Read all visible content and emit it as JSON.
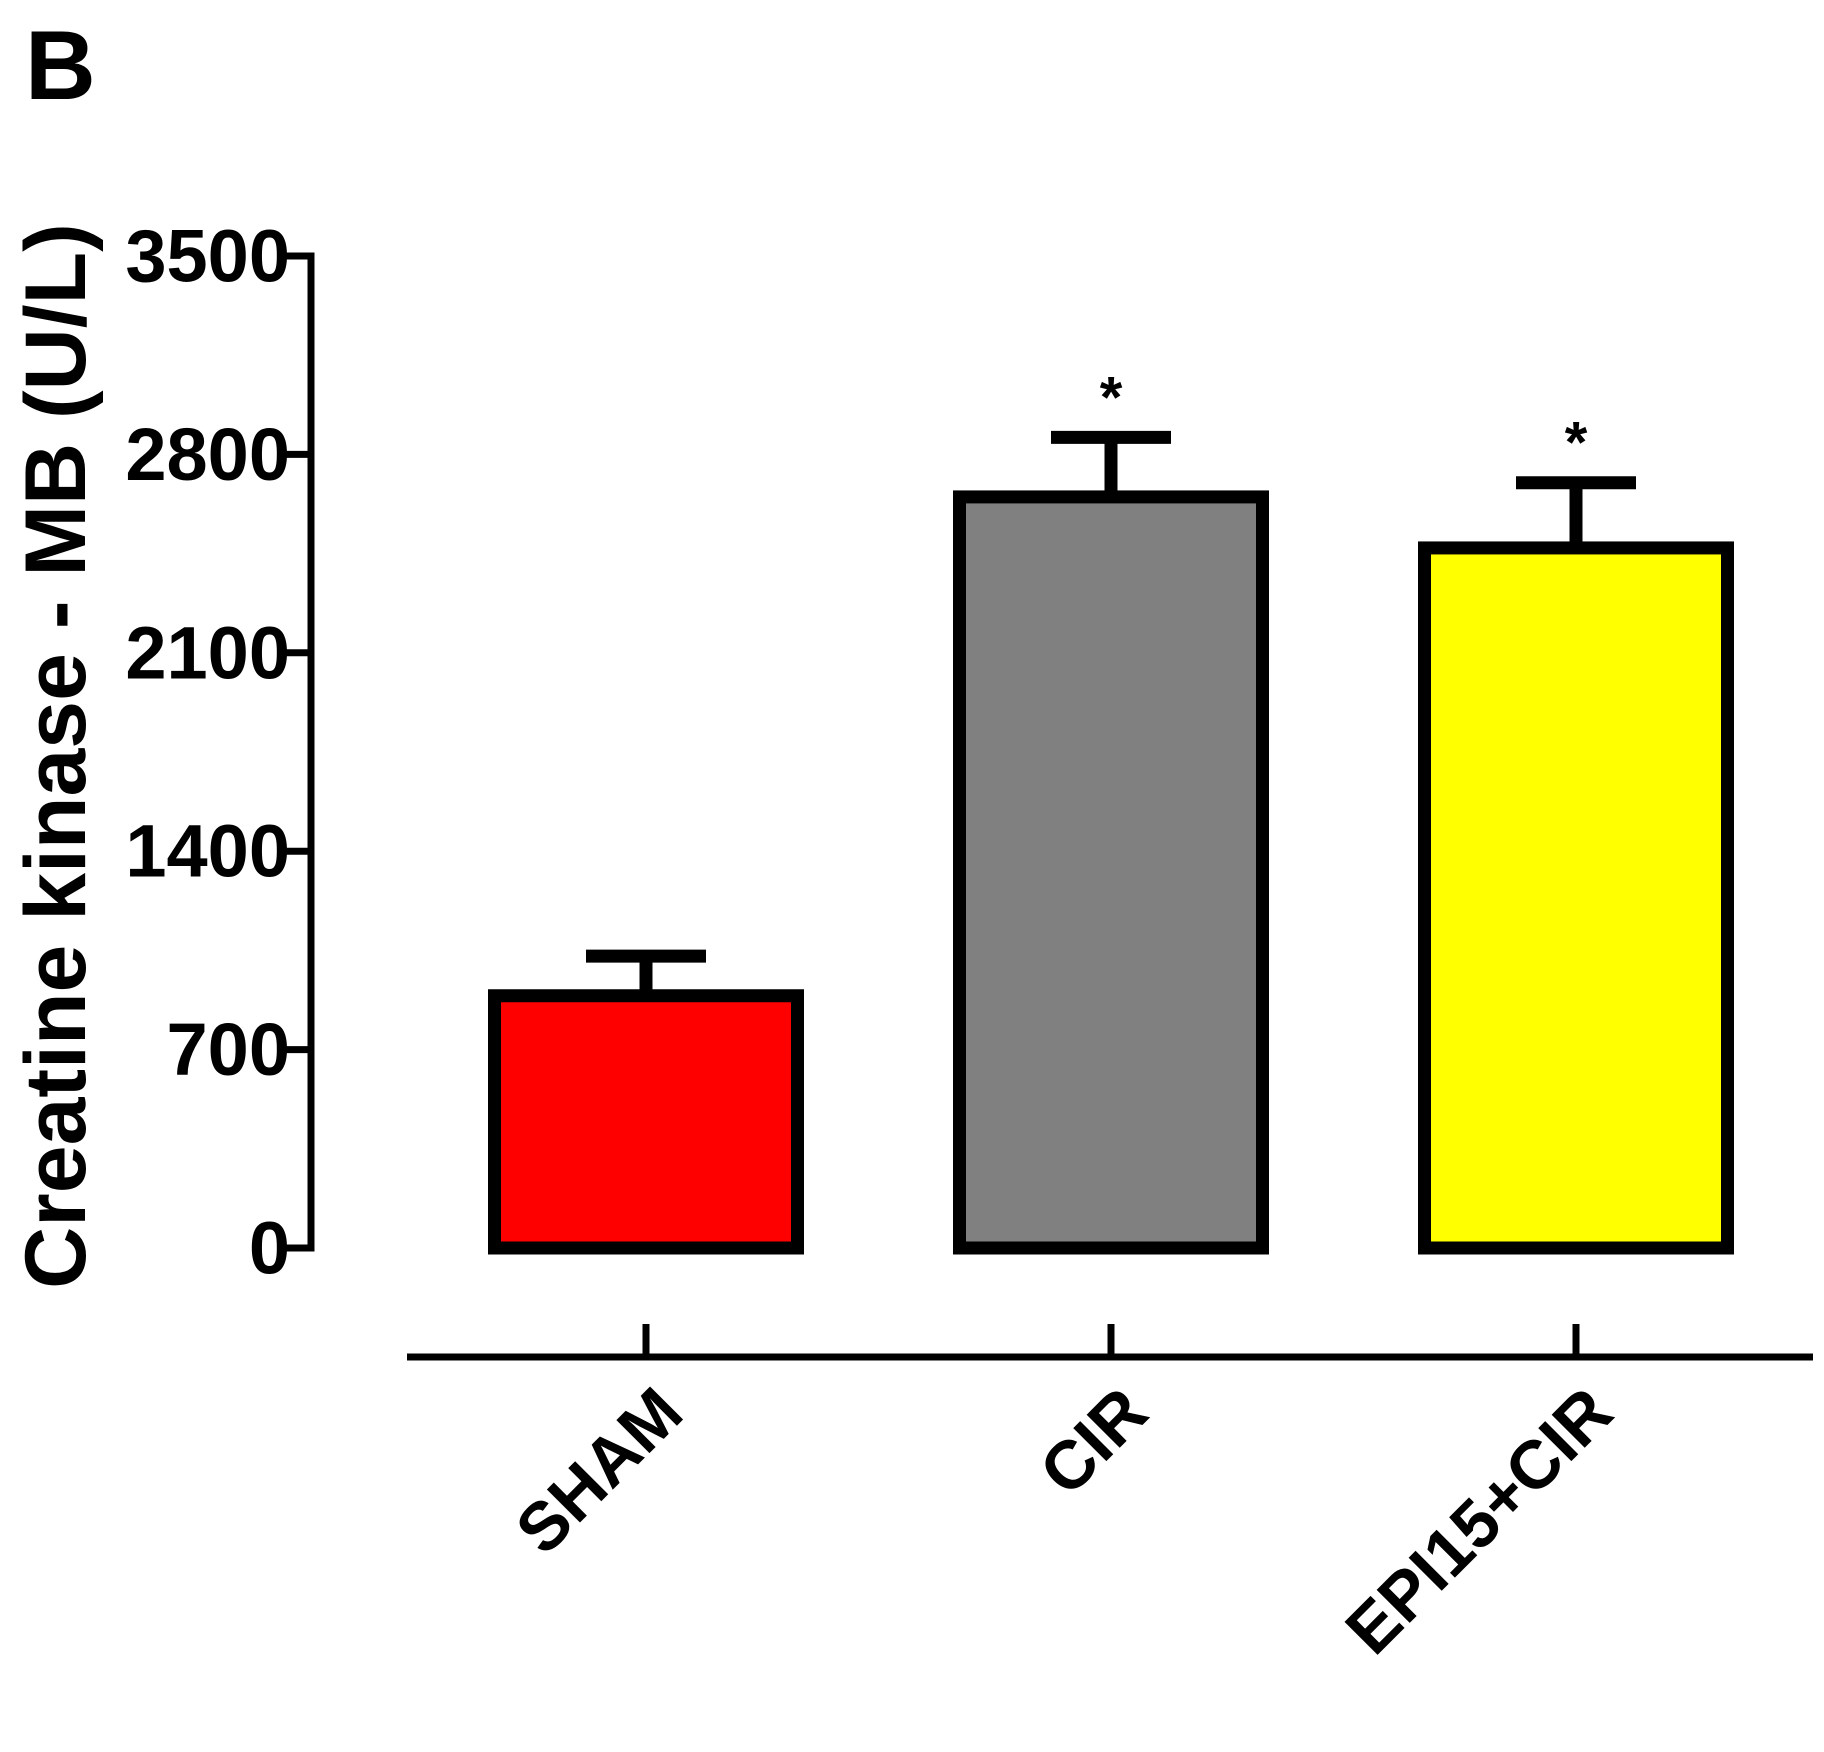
{
  "panel_label": "B",
  "chart_data": {
    "type": "bar",
    "title": "",
    "xlabel": "",
    "ylabel": "Creatine kinase - MB  (U/L)",
    "categories": [
      "SHAM",
      "CIR",
      "EPI15+CIR"
    ],
    "values": [
      890,
      2650,
      2470
    ],
    "errors": [
      140,
      210,
      230
    ],
    "significance": [
      "",
      "*",
      "*"
    ],
    "ylim": [
      0,
      3500
    ],
    "yticks": [
      0,
      700,
      1400,
      2100,
      2800,
      3500
    ],
    "ytick_labels": [
      "0",
      "700",
      "1400",
      "2100",
      "2800",
      "3500"
    ],
    "grid": false,
    "legend": "none",
    "colors": [
      "#ff0000",
      "#808080",
      "#ffff00"
    ],
    "edge_color": "#000000"
  }
}
